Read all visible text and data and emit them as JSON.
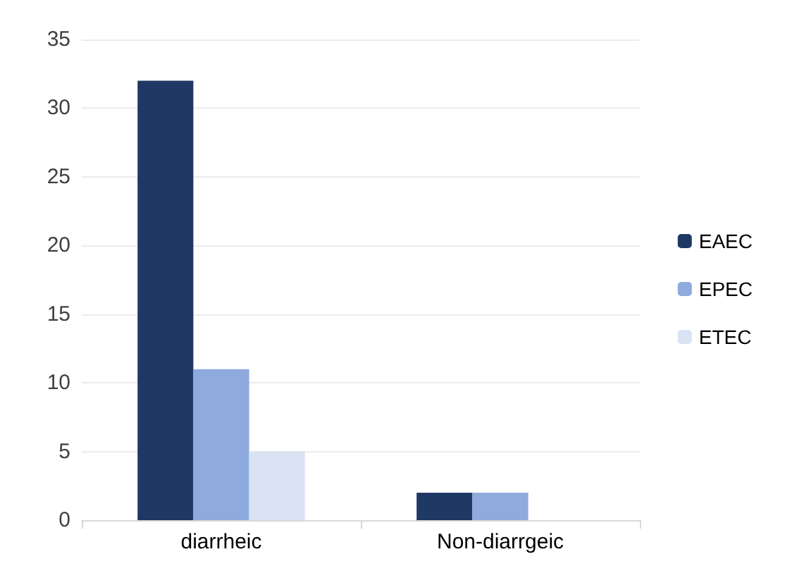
{
  "chart_data": {
    "type": "bar",
    "categories": [
      "diarrheic",
      "Non-diarrgeic"
    ],
    "series": [
      {
        "name": "EAEC",
        "color": "#203864",
        "values": [
          32,
          2
        ]
      },
      {
        "name": "EPEC",
        "color": "#8faadc",
        "values": [
          11,
          2
        ]
      },
      {
        "name": "ETEC",
        "color": "#dae3f3",
        "values": [
          5,
          0
        ]
      }
    ],
    "ylim": [
      0,
      35
    ],
    "yticks": [
      0,
      5,
      10,
      15,
      20,
      25,
      30,
      35
    ],
    "grid": "y",
    "legend": "right"
  }
}
